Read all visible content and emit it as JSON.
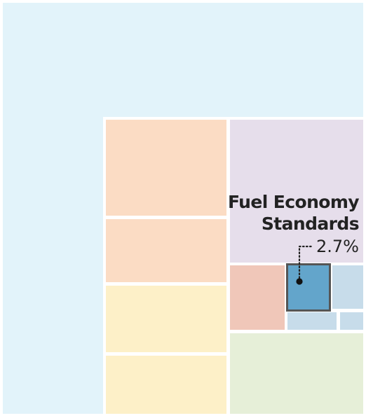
{
  "chart_data": {
    "type": "treemap",
    "highlight": {
      "name": "Fuel Economy Standards",
      "title_line1": "Fuel Economy",
      "title_line2": "Standards",
      "value_text": "2.7%",
      "value": 2.7,
      "color": "#63a5cb",
      "border_color": "#555555"
    },
    "colors": {
      "background_block": "#e2f3fa",
      "orange_block": "#fbdcc4",
      "yellow_block": "#fdf0c8",
      "purple_block": "#e6deeb",
      "salmon_block": "#f0c7b9",
      "light_blue_block": "#c7dcea",
      "green_block": "#e6efd8",
      "gap": "#ffffff"
    }
  }
}
